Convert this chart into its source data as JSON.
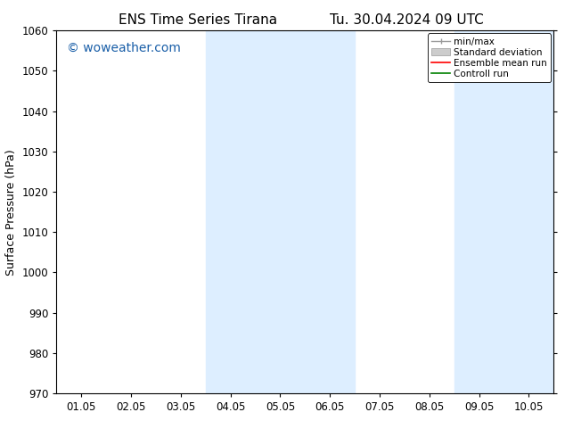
{
  "title_left": "ENS Time Series Tirana",
  "title_right": "Tu. 30.04.2024 09 UTC",
  "ylabel": "Surface Pressure (hPa)",
  "ylim": [
    970,
    1060
  ],
  "yticks": [
    970,
    980,
    990,
    1000,
    1010,
    1020,
    1030,
    1040,
    1050,
    1060
  ],
  "xtick_labels": [
    "01.05",
    "02.05",
    "03.05",
    "04.05",
    "05.05",
    "06.05",
    "07.05",
    "08.05",
    "09.05",
    "10.05"
  ],
  "shaded_regions": [
    {
      "xstart": 3,
      "xend": 5,
      "color": "#ddeeff"
    },
    {
      "xstart": 8,
      "xend": 10,
      "color": "#ddeeff"
    }
  ],
  "watermark": "© woweather.com",
  "watermark_color": "#1a5fa8",
  "watermark_fontsize": 10,
  "bg_color": "#ffffff",
  "title_fontsize": 11,
  "axis_fontsize": 9,
  "tick_fontsize": 8.5
}
